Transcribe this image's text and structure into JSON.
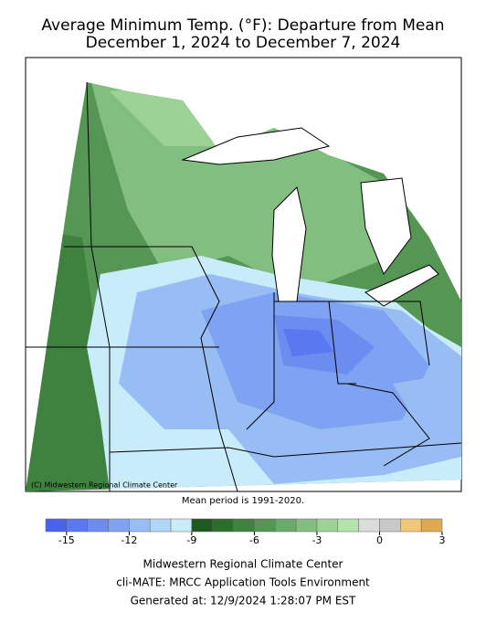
{
  "header": {
    "title": "Average Minimum Temp. (°F): Departure from Mean",
    "subtitle": "December 1, 2024 to December 7, 2024"
  },
  "map": {
    "credit": "(C) Midwestern Regional Climate Center"
  },
  "note": "Mean period is 1991-2020.",
  "legend": {
    "lim": [
      -16,
      3
    ],
    "ticks": [
      -15,
      -12,
      -9,
      -6,
      -3,
      0,
      3
    ],
    "bins": [
      -16,
      -15,
      -14,
      -13,
      -12,
      -11,
      -10,
      -9,
      -8,
      -7,
      -6,
      -5,
      -4,
      -3,
      -2,
      -1,
      0,
      1,
      2,
      3
    ],
    "colors": [
      "#4863f0",
      "#5a78f0",
      "#6c8cf0",
      "#80a2f2",
      "#98bcf4",
      "#b2d6f8",
      "#c8ecfa",
      "#1d5a1d",
      "#2c6e2c",
      "#3f823f",
      "#559655",
      "#6aaa6a",
      "#82be80",
      "#9cd296",
      "#b4e4ac",
      "#dcdcdc",
      "#c8c8c8",
      "#f0c878",
      "#e0aa50"
    ]
  },
  "footer": {
    "line1": "Midwestern Regional Climate Center",
    "line2": "cli-MATE: MRCC Application Tools Environment",
    "line3": "Generated at: 12/9/2024 1:28:07 PM EST"
  }
}
